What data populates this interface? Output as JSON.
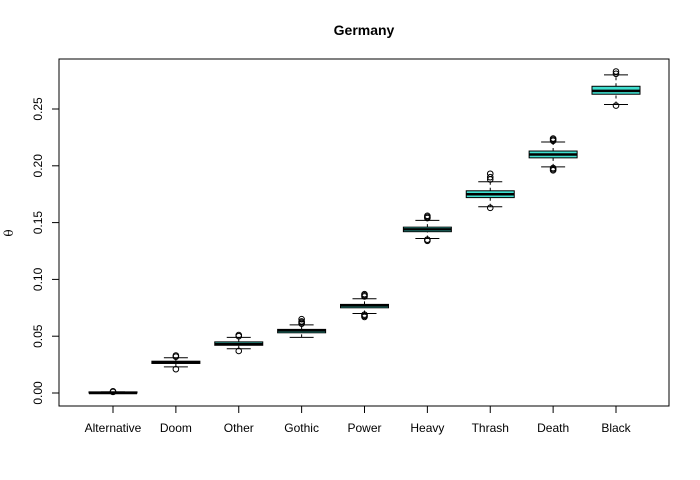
{
  "chart_data": {
    "type": "boxplot",
    "title": "Germany",
    "xlabel": "",
    "ylabel": "θ",
    "ylim": [
      0,
      0.285
    ],
    "yticks": [
      0.0,
      0.05,
      0.1,
      0.15,
      0.2,
      0.25
    ],
    "ytick_labels": [
      "0.00",
      "0.05",
      "0.10",
      "0.15",
      "0.20",
      "0.25"
    ],
    "grid": false,
    "legend": "none",
    "box_color": "#40E0D0",
    "categories": [
      "Alternative",
      "Doom",
      "Other",
      "Gothic",
      "Power",
      "Heavy",
      "Thrash",
      "Death",
      "Black"
    ],
    "boxes": [
      {
        "category": "Alternative",
        "whisker_low": 0.0,
        "q1": 0.0,
        "median": 0.0,
        "q3": 0.001,
        "whisker_high": 0.001,
        "outliers": [
          0.001,
          0.0015
        ]
      },
      {
        "category": "Doom",
        "whisker_low": 0.023,
        "q1": 0.026,
        "median": 0.027,
        "q3": 0.028,
        "whisker_high": 0.031,
        "outliers": [
          0.021,
          0.032,
          0.033
        ]
      },
      {
        "category": "Other",
        "whisker_low": 0.039,
        "q1": 0.042,
        "median": 0.043,
        "q3": 0.045,
        "whisker_high": 0.049,
        "outliers": [
          0.037,
          0.05,
          0.051
        ]
      },
      {
        "category": "Gothic",
        "whisker_low": 0.049,
        "q1": 0.053,
        "median": 0.055,
        "q3": 0.056,
        "whisker_high": 0.06,
        "outliers": [
          0.061,
          0.062,
          0.063,
          0.065
        ]
      },
      {
        "category": "Power",
        "whisker_low": 0.07,
        "q1": 0.075,
        "median": 0.077,
        "q3": 0.078,
        "whisker_high": 0.083,
        "outliers": [
          0.067,
          0.068,
          0.069,
          0.085,
          0.086,
          0.087
        ]
      },
      {
        "category": "Heavy",
        "whisker_low": 0.136,
        "q1": 0.142,
        "median": 0.144,
        "q3": 0.146,
        "whisker_high": 0.152,
        "outliers": [
          0.134,
          0.135,
          0.154,
          0.155,
          0.156
        ]
      },
      {
        "category": "Thrash",
        "whisker_low": 0.164,
        "q1": 0.172,
        "median": 0.175,
        "q3": 0.178,
        "whisker_high": 0.186,
        "outliers": [
          0.163,
          0.188,
          0.19,
          0.193
        ]
      },
      {
        "category": "Death",
        "whisker_low": 0.199,
        "q1": 0.207,
        "median": 0.21,
        "q3": 0.213,
        "whisker_high": 0.221,
        "outliers": [
          0.196,
          0.197,
          0.198,
          0.222,
          0.223,
          0.224
        ]
      },
      {
        "category": "Black",
        "whisker_low": 0.254,
        "q1": 0.263,
        "median": 0.266,
        "q3": 0.27,
        "whisker_high": 0.28,
        "outliers": [
          0.253,
          0.281,
          0.283
        ]
      }
    ]
  }
}
